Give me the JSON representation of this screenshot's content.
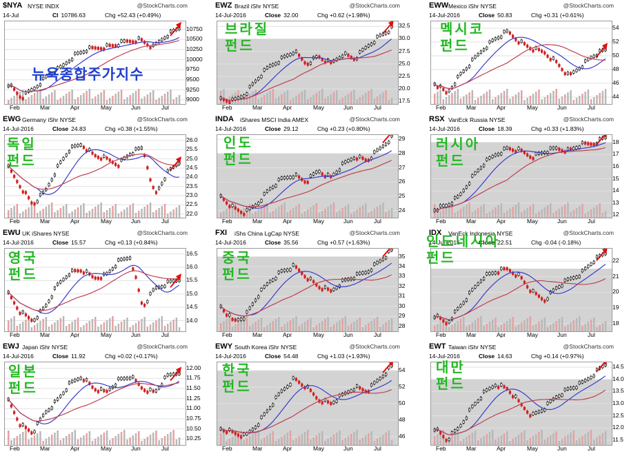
{
  "panels": [
    {
      "id": "nya",
      "symbol": "$NYA",
      "name": "NYSE INDX",
      "date": "14-Jul",
      "close_label": "Cl",
      "close": "10786.63",
      "chg": "Chg +52.43 (+0.49%)",
      "dir": "up",
      "label": "뉴욕종합주가지수",
      "label_color": "#1f3fd0",
      "y_ticks": [
        "10750",
        "10500",
        "10250",
        "10000",
        "9750",
        "9500",
        "9250",
        "9000"
      ],
      "x_ticks": [
        "Feb",
        "Mar",
        "Apr",
        "May",
        "Jun",
        "Jul"
      ],
      "ylim": [
        8900,
        10950
      ],
      "shade_level": null,
      "series": {
        "start": 9400,
        "points": [
          9400,
          9050,
          9300,
          9600,
          9800,
          10100,
          10250,
          10300,
          10350,
          10450,
          10500,
          10300,
          10600,
          10786
        ]
      }
    },
    {
      "id": "ewz",
      "symbol": "EWZ",
      "name": "Brazil iShr NYSE",
      "date": "14-Jul-2016",
      "close_label": "Close",
      "close": "32.00",
      "chg": "Chg +0.62 (+1.98%)",
      "dir": "up",
      "label": "브라질\n펀드",
      "label_color": "#22b822",
      "y_ticks": [
        "32.5",
        "30.0",
        "27.5",
        "25.0",
        "22.5",
        "20.0",
        "17.5"
      ],
      "x_ticks": [
        "Feb",
        "Mar",
        "Apr",
        "May",
        "Jun",
        "Jul"
      ],
      "ylim": [
        17,
        33.5
      ],
      "shade_level": 30.0,
      "series": {
        "points": [
          18,
          17.5,
          19,
          22,
          24.5,
          26,
          27.5,
          25,
          26.5,
          25,
          27,
          26,
          28.5,
          30.5,
          32
        ]
      }
    },
    {
      "id": "eww",
      "symbol": "EWW",
      "name": "Mexico iShr NYSE",
      "date": "14-Jul-2016",
      "close_label": "Close",
      "close": "50.83",
      "chg": "Chg +0.31 (+0.61%)",
      "dir": "up",
      "label": "멕시코\n펀드",
      "label_color": "#22b822",
      "y_ticks": [
        "54",
        "52",
        "50",
        "48",
        "46",
        "44"
      ],
      "x_ticks": [
        "Feb",
        "Mar",
        "Apr",
        "May",
        "Jun",
        "Jul"
      ],
      "ylim": [
        43,
        55
      ],
      "shade_level": null,
      "series": {
        "points": [
          46,
          44.5,
          47,
          49,
          51,
          52.5,
          53.5,
          52,
          51,
          50.5,
          49,
          47,
          48.5,
          50,
          50.83
        ]
      }
    },
    {
      "id": "ewg",
      "symbol": "EWG",
      "name": "Germany iShr NYSE",
      "date": "14-Jul-2016",
      "close_label": "Close",
      "close": "24.83",
      "chg": "Chg +0.38 (+1.55%)",
      "dir": "up",
      "label": "독일\n펀드",
      "label_color": "#22b822",
      "y_ticks": [
        "26.0",
        "25.5",
        "25.0",
        "24.5",
        "24.0",
        "23.5",
        "23.0",
        "22.5",
        "22.0"
      ],
      "x_ticks": [
        "Feb",
        "Mar",
        "Apr",
        "May",
        "Jun",
        "Jul"
      ],
      "ylim": [
        21.8,
        26.3
      ],
      "shade_level": null,
      "series": {
        "points": [
          24.5,
          23.5,
          22.5,
          23.2,
          24.5,
          25.5,
          25.8,
          25.2,
          25.0,
          24.7,
          25.3,
          25.6,
          23.0,
          24.2,
          24.83
        ]
      }
    },
    {
      "id": "inda",
      "symbol": "INDA",
      "name": "iShares MSCI India AMEX",
      "date": "14-Jul-2016",
      "close_label": "Close",
      "close": "29.12",
      "chg": "Chg +0.23 (+0.80%)",
      "dir": "up",
      "label": "인도\n펀드",
      "label_color": "#22b822",
      "y_ticks": [
        "29",
        "28",
        "27",
        "26",
        "25",
        "24"
      ],
      "x_ticks": [
        "Feb",
        "Mar",
        "Apr",
        "May",
        "Jun",
        "Jul"
      ],
      "ylim": [
        23.5,
        29.3
      ],
      "shade_level": 28.0,
      "series": {
        "points": [
          25,
          24.2,
          23.8,
          24.5,
          25.5,
          26.2,
          26.5,
          26,
          26.8,
          26.3,
          27.2,
          27.8,
          27.5,
          28.3,
          29.12
        ]
      }
    },
    {
      "id": "rsx",
      "symbol": "RSX",
      "name": "VanEck Russia NYSE",
      "date": "14-Jul-2016",
      "close_label": "Close",
      "close": "18.39",
      "chg": "Chg +0.33 (+1.83%)",
      "dir": "up",
      "label": "러시아\n펀드",
      "label_color": "#22b822",
      "y_ticks": [
        "18",
        "17",
        "16",
        "15",
        "14",
        "13",
        "12"
      ],
      "x_ticks": [
        "Feb",
        "Mar",
        "Apr",
        "May",
        "Jun",
        "Jul"
      ],
      "ylim": [
        11.8,
        18.6
      ],
      "shade_level": 18.0,
      "series": {
        "points": [
          12.5,
          12.8,
          13.5,
          15,
          16.2,
          17,
          17.5,
          17.3,
          16.8,
          17.2,
          17.5,
          17.3,
          17.8,
          17.9,
          18.39
        ]
      }
    },
    {
      "id": "ewu",
      "symbol": "EWU",
      "name": "UK iShares NYSE",
      "date": "14-Jul-2016",
      "close_label": "Close",
      "close": "15.57",
      "chg": "Chg +0.13 (+0.84%)",
      "dir": "up",
      "label": "영국\n펀드",
      "label_color": "#22b822",
      "y_ticks": [
        "16.5",
        "16.0",
        "15.5",
        "15.0",
        "14.5",
        "14.0"
      ],
      "x_ticks": [
        "Feb",
        "Mar",
        "Apr",
        "May",
        "Jun",
        "Jul"
      ],
      "ylim": [
        13.6,
        16.7
      ],
      "shade_level": null,
      "series": {
        "points": [
          15,
          14.3,
          14,
          14.5,
          15.3,
          15.8,
          15.9,
          15.6,
          15.7,
          16.2,
          16.4,
          14.5,
          15.2,
          15.4,
          15.57
        ]
      }
    },
    {
      "id": "fxi",
      "symbol": "FXI",
      "name": "iShs China LgCap NYSE",
      "date": "14-Jul-2016",
      "close_label": "Close",
      "close": "35.56",
      "chg": "Chg +0.57 (+1.63%)",
      "dir": "up",
      "label": "중국\n펀드",
      "label_color": "#22b822",
      "y_ticks": [
        "35",
        "34",
        "33",
        "32",
        "31",
        "30",
        "29",
        "28"
      ],
      "x_ticks": [
        "Feb",
        "Mar",
        "Apr",
        "May",
        "Jun",
        "Jul"
      ],
      "ylim": [
        27.5,
        35.8
      ],
      "shade_level": 35.0,
      "series": {
        "points": [
          30,
          28.5,
          29,
          31,
          32.5,
          33.5,
          34,
          33,
          32,
          31.5,
          32.5,
          33,
          33.5,
          34.5,
          35.56
        ]
      }
    },
    {
      "id": "idx",
      "symbol": "IDX",
      "name": "VanEck Indonesia NYSE",
      "date": "14-Jul-2016",
      "close_label": "Close",
      "close": "22.51",
      "chg": "Chg -0.04 (-0.18%)",
      "dir": "down",
      "label": "인도네시아\n펀드",
      "label_color": "#22b822",
      "y_ticks": [
        "22",
        "21",
        "20",
        "19",
        "18"
      ],
      "x_ticks": [
        "Feb",
        "Mar",
        "Apr",
        "May",
        "Jun",
        "Jul"
      ],
      "ylim": [
        17.5,
        22.8
      ],
      "shade_level": 21.5,
      "series": {
        "points": [
          18.5,
          18,
          19,
          20,
          21,
          21.3,
          21.5,
          21,
          20,
          19.5,
          20.3,
          20.8,
          21.2,
          22,
          22.51
        ]
      }
    },
    {
      "id": "ewj",
      "symbol": "EWJ",
      "name": "Japan iShr NYSE",
      "date": "14-Jul-2016",
      "close_label": "Close",
      "close": "11.92",
      "chg": "Chg +0.02 (+0.17%)",
      "dir": "up",
      "label": "일본\n펀드",
      "label_color": "#22b822",
      "y_ticks": [
        "12.00",
        "11.75",
        "11.50",
        "11.25",
        "11.00",
        "10.75",
        "10.50",
        "10.25"
      ],
      "x_ticks": [
        "Feb",
        "Mar",
        "Apr",
        "May",
        "Jun",
        "Jul"
      ],
      "ylim": [
        10.1,
        12.15
      ],
      "shade_level": null,
      "series": {
        "points": [
          11.2,
          10.6,
          10.4,
          10.9,
          11.2,
          11.6,
          11.8,
          11.5,
          11.4,
          11.7,
          11.8,
          11.5,
          11.4,
          11.8,
          11.92
        ]
      }
    },
    {
      "id": "ewy",
      "symbol": "EWY",
      "name": "South Korea iShr NYSE",
      "date": "14-Jul-2016",
      "close_label": "Close",
      "close": "54.48",
      "chg": "Chg +1.03 (+1.93%)",
      "dir": "up",
      "label": "한국\n펀드",
      "label_color": "#22b822",
      "y_ticks": [
        "54",
        "52",
        "50",
        "48",
        "46"
      ],
      "x_ticks": [
        "Feb",
        "Mar",
        "Apr",
        "May",
        "Jun",
        "Jul"
      ],
      "ylim": [
        45,
        55
      ],
      "shade_level": 54.0,
      "series": {
        "points": [
          47,
          46.5,
          46,
          47.5,
          49.5,
          51.5,
          53,
          52,
          50.5,
          50,
          51,
          52,
          51.5,
          53,
          54.48
        ]
      }
    },
    {
      "id": "ewt",
      "symbol": "EWT",
      "name": "Taiwan iShr NYSE",
      "date": "14-Jul-2016",
      "close_label": "Close",
      "close": "14.63",
      "chg": "Chg +0.14 (+0.97%)",
      "dir": "up",
      "label": "대만\n펀드",
      "label_color": "#22b822",
      "y_ticks": [
        "14.5",
        "14.0",
        "13.5",
        "13.0",
        "12.5",
        "12.0",
        "11.5"
      ],
      "x_ticks": [
        "Feb",
        "Mar",
        "Apr",
        "May",
        "Jun",
        "Jul"
      ],
      "ylim": [
        11.3,
        14.7
      ],
      "shade_level": 14.0,
      "series": {
        "points": [
          12,
          11.5,
          12,
          12.8,
          13.4,
          13.8,
          13.6,
          13,
          12.5,
          12.8,
          13.3,
          13.6,
          13.8,
          14.2,
          14.63
        ]
      }
    }
  ],
  "logo_text": "@StockCharts.com"
}
